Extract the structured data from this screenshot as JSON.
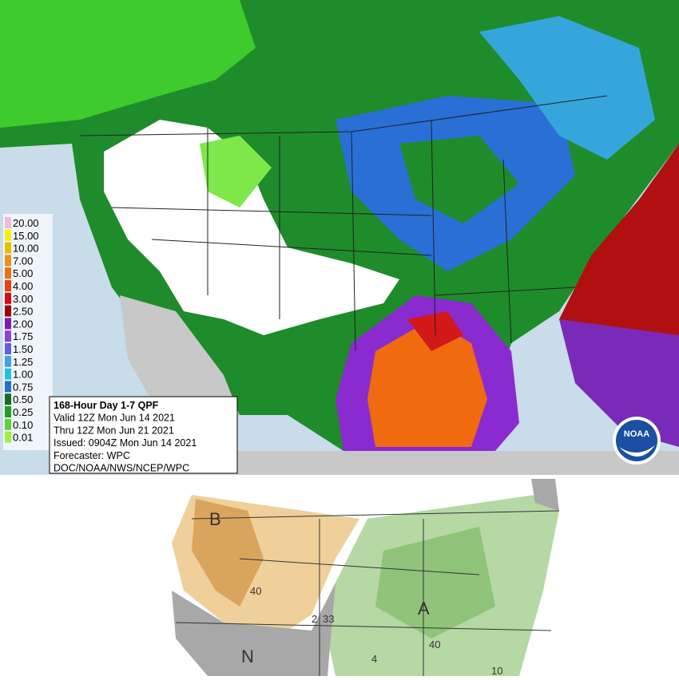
{
  "qpf_map": {
    "legend": [
      "20.00",
      "15.00",
      "10.00",
      "7.00",
      "5.00",
      "4.00",
      "3.00",
      "2.50",
      "2.00",
      "1.75",
      "1.50",
      "1.25",
      "1.00",
      "0.75",
      "0.50",
      "0.25",
      "0.10",
      "0.01"
    ],
    "info_box": [
      "168-Hour Day 1-7 QPF",
      "Valid 12Z Mon Jun 14 2021",
      "Thru 12Z Mon Jun 21 2021",
      "Issued: 0904Z Mon Jun 14 2021",
      "Forecaster: WPC",
      "DOC/NOAA/NWS/NCEP/WPC"
    ],
    "logo": "NOAA"
  },
  "outlook_map": {
    "labels": [
      "B",
      "40",
      "A",
      "N",
      "33",
      "40",
      "4",
      "10",
      "2"
    ]
  }
}
